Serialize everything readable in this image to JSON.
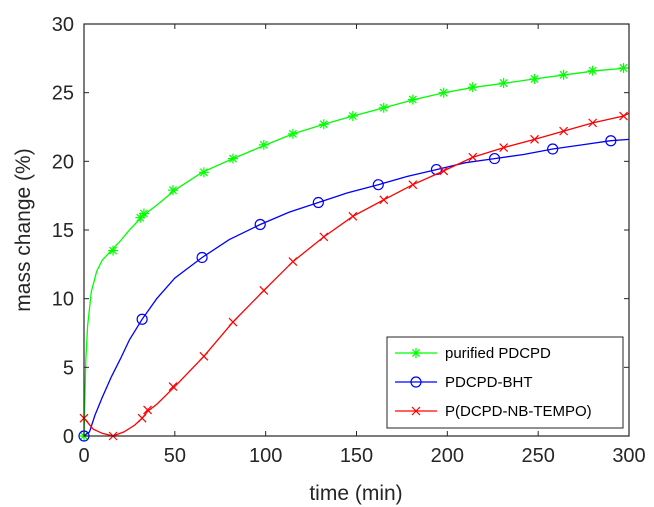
{
  "chart_data": {
    "type": "line",
    "xlabel": "time (min)",
    "ylabel": "mass change (%)",
    "xlim": [
      0,
      300
    ],
    "ylim": [
      0,
      30
    ],
    "xticks": [
      0,
      50,
      100,
      150,
      200,
      250,
      300
    ],
    "yticks": [
      0,
      5,
      10,
      15,
      20,
      25,
      30
    ],
    "grid": false,
    "legend_position": "bottom-right",
    "series": [
      {
        "name": "purified PDCPD",
        "color": "#00ff00",
        "marker": "asterisk",
        "x": [
          0,
          1,
          2,
          4,
          7,
          10,
          15,
          20,
          25,
          30,
          33,
          35,
          40,
          50,
          65,
          82,
          100,
          115,
          132,
          148,
          165,
          182,
          198,
          215,
          232,
          248,
          265,
          282,
          300
        ],
        "y": [
          0,
          5.5,
          8,
          10.5,
          12,
          12.8,
          13.5,
          14.2,
          15,
          15.7,
          16,
          16.3,
          16.8,
          17.9,
          19.2,
          20.2,
          21.2,
          22,
          22.7,
          23.3,
          23.9,
          24.5,
          25,
          25.4,
          25.7,
          26,
          26.3,
          26.6,
          26.8
        ],
        "marker_x": [
          0,
          16,
          31,
          33,
          49,
          66,
          82,
          99,
          115,
          132,
          148,
          165,
          181,
          198,
          214,
          231,
          248,
          264,
          280,
          297
        ],
        "marker_y": [
          0,
          13.5,
          15.9,
          16.2,
          17.9,
          19.2,
          20.2,
          21.2,
          22,
          22.7,
          23.3,
          23.9,
          24.5,
          25,
          25.4,
          25.7,
          26,
          26.3,
          26.6,
          26.8
        ]
      },
      {
        "name": "PDCPD-BHT",
        "color": "#0000ff",
        "marker": "circle",
        "x": [
          0,
          3,
          6,
          10,
          15,
          20,
          25,
          32,
          40,
          50,
          65,
          80,
          97,
          113,
          129,
          145,
          162,
          178,
          194,
          210,
          226,
          242,
          258,
          274,
          290,
          300
        ],
        "y": [
          0,
          0.3,
          1.5,
          2.8,
          4.3,
          5.6,
          7,
          8.5,
          10,
          11.5,
          13,
          14.3,
          15.4,
          16.3,
          17,
          17.7,
          18.3,
          18.9,
          19.4,
          19.9,
          20.2,
          20.5,
          20.9,
          21.2,
          21.5,
          21.6
        ],
        "marker_x": [
          0,
          32,
          65,
          97,
          129,
          162,
          194,
          226,
          258,
          290
        ],
        "marker_y": [
          0,
          8.5,
          13,
          15.4,
          17,
          18.3,
          19.4,
          20.2,
          20.9,
          21.5
        ]
      },
      {
        "name": "P(DCPD-NB-TEMPO)",
        "color": "#ff0000",
        "marker": "x",
        "x": [
          0,
          5,
          10,
          16,
          22,
          28,
          32,
          35,
          40,
          50,
          66,
          82,
          99,
          115,
          132,
          148,
          165,
          181,
          198,
          214,
          231,
          248,
          264,
          280,
          297,
          300
        ],
        "y": [
          1.3,
          0.5,
          0.2,
          0,
          0.3,
          0.8,
          1.3,
          1.8,
          2.3,
          3.6,
          5.8,
          8.3,
          10.6,
          12.7,
          14.5,
          16,
          17.2,
          18.3,
          19.3,
          20.3,
          21,
          21.6,
          22.2,
          22.8,
          23.3,
          23.5
        ],
        "marker_x": [
          0,
          16,
          32,
          35,
          49,
          66,
          82,
          99,
          115,
          132,
          148,
          165,
          181,
          198,
          214,
          231,
          248,
          264,
          280,
          297
        ],
        "marker_y": [
          1.3,
          0,
          1.3,
          1.9,
          3.6,
          5.8,
          8.3,
          10.6,
          12.7,
          14.5,
          16,
          17.2,
          18.3,
          19.3,
          20.3,
          21,
          21.6,
          22.2,
          22.8,
          23.3
        ]
      }
    ]
  }
}
